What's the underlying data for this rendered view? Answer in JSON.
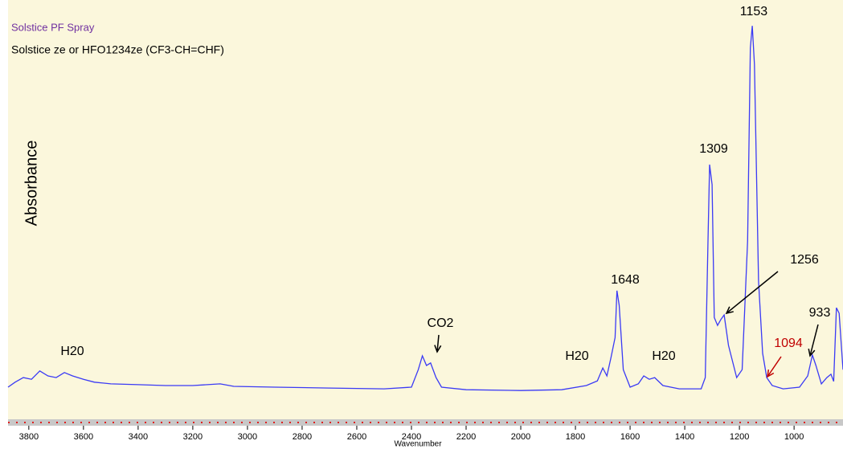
{
  "chart_data": {
    "type": "line",
    "title": "Solstice PF Spray",
    "subtitle": "Solstice ze  or HFO1234ze   (CF3-CH=CHF)",
    "y_label": "Absorbance",
    "x_label": "Wavenumber",
    "xlim": [
      3876,
      821
    ],
    "xticks": [
      3800,
      3600,
      3400,
      3200,
      3000,
      2800,
      2600,
      2400,
      2200,
      2000,
      1800,
      1600,
      1400,
      1200,
      1000
    ],
    "ylim": [
      0,
      100
    ],
    "color": "#3a3af5",
    "x": [
      3876,
      3850,
      3820,
      3790,
      3760,
      3730,
      3700,
      3670,
      3640,
      3600,
      3560,
      3500,
      3400,
      3300,
      3200,
      3100,
      3050,
      2900,
      2700,
      2500,
      2400,
      2375,
      2360,
      2345,
      2330,
      2310,
      2290,
      2200,
      2000,
      1850,
      1760,
      1720,
      1700,
      1685,
      1670,
      1655,
      1648,
      1640,
      1625,
      1600,
      1570,
      1550,
      1530,
      1510,
      1480,
      1420,
      1340,
      1325,
      1315,
      1309,
      1300,
      1292,
      1280,
      1268,
      1256,
      1240,
      1210,
      1190,
      1170,
      1160,
      1153,
      1145,
      1130,
      1115,
      1100,
      1080,
      1040,
      980,
      950,
      933,
      920,
      900,
      880,
      865,
      855,
      845,
      835,
      821
    ],
    "values": [
      7.3,
      8.5,
      9.6,
      9.2,
      11.2,
      10,
      9.6,
      10.8,
      10,
      9.2,
      8.5,
      8.1,
      7.9,
      7.7,
      7.7,
      8.1,
      7.5,
      7.3,
      7.1,
      6.9,
      7.3,
      11.5,
      14.8,
      12.5,
      13.1,
      9.6,
      7.3,
      6.7,
      6.5,
      6.7,
      7.7,
      8.8,
      11.9,
      10,
      14.4,
      19.2,
      30.4,
      26.9,
      11.5,
      7.3,
      8.1,
      10,
      9.2,
      9.6,
      7.7,
      6.9,
      6.9,
      9.6,
      42.3,
      60.6,
      55.8,
      24,
      22.1,
      23.5,
      24.6,
      17.3,
      9.6,
      11.5,
      42.3,
      88.5,
      93.8,
      84.6,
      32.7,
      15.4,
      9.6,
      7.7,
      6.9,
      7.3,
      10,
      15,
      12.5,
      8.1,
      9.6,
      10.4,
      8.7,
      26.3,
      25,
      11.5
    ],
    "annotations": [
      {
        "text": "H20"
      },
      {
        "text": "CO2"
      },
      {
        "text": "H20"
      },
      {
        "text": "H20"
      },
      {
        "text": "1648"
      },
      {
        "text": "1309"
      },
      {
        "text": "1256"
      },
      {
        "text": "1153"
      },
      {
        "text": "1094",
        "color": "#c00000"
      },
      {
        "text": "933"
      }
    ]
  }
}
